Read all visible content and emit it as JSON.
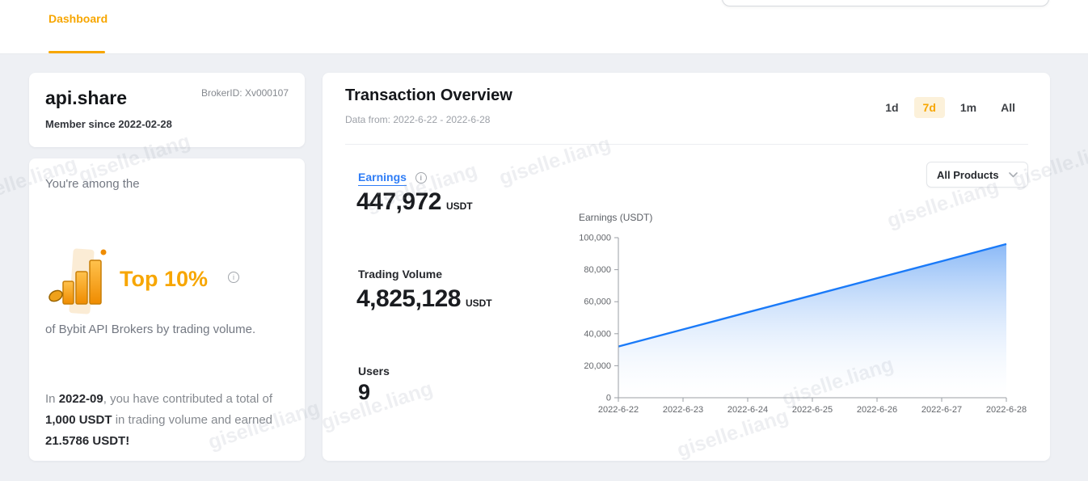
{
  "topbar": {
    "tab_label": "Dashboard"
  },
  "profile_card": {
    "name": "api.share",
    "broker_id": "BrokerID: Xv000107",
    "member_since": "Member since 2022-02-28"
  },
  "rank_card": {
    "intro": "You're among the",
    "rank": "Top 10%",
    "desc": "of Bybit API Brokers by trading volume.",
    "contribution": {
      "s1": "In ",
      "s2": "2022-09",
      "s3": ", you have contributed a total of ",
      "s4": "1,000 USDT",
      "s5": " in trading volume and earned ",
      "s6": "21.5786 USDT!"
    }
  },
  "overview": {
    "title": "Transaction Overview",
    "subtitle": "Data from: 2022-6-22 - 2022-6-28",
    "ranges": [
      {
        "label": "1d",
        "selected": false
      },
      {
        "label": "7d",
        "selected": true
      },
      {
        "label": "1m",
        "selected": false
      },
      {
        "label": "All",
        "selected": false
      }
    ],
    "products_dropdown": "All Products",
    "stats": [
      {
        "label": "Earnings",
        "value": "447,972",
        "unit": "USDT"
      },
      {
        "label": "Trading Volume",
        "value": "4,825,128",
        "unit": "USDT"
      },
      {
        "label": "Users",
        "value": "9",
        "unit": ""
      }
    ]
  },
  "chart_data": {
    "type": "area",
    "title": "Earnings (USDT)",
    "x": [
      "2022-6-22",
      "2022-6-23",
      "2022-6-24",
      "2022-6-25",
      "2022-6-26",
      "2022-6-27",
      "2022-6-28"
    ],
    "values": [
      32000,
      42700,
      53400,
      64000,
      74700,
      85300,
      96000
    ],
    "ylim": [
      0,
      100000
    ],
    "y_ticks": [
      0,
      20000,
      40000,
      60000,
      80000,
      100000
    ],
    "xlabel": "",
    "ylabel": "Earnings (USDT)",
    "grid": false,
    "legend": "none",
    "line_color": "#1a7af8",
    "fill_top": "#84b5f6",
    "fill_bottom": "#ffffff",
    "axis_color": "#9b9fa5",
    "tick_text_color": "#63666b"
  },
  "icons": {
    "info": "i"
  },
  "watermark": {
    "text": "giselle.liang"
  },
  "colors": {
    "accent_orange": "#f7a600",
    "selected_pill_bg": "#fcf1da",
    "link_blue": "#2f7df6",
    "chart_line_blue": "#1a7af8",
    "page_bg": "#eef0f4"
  }
}
